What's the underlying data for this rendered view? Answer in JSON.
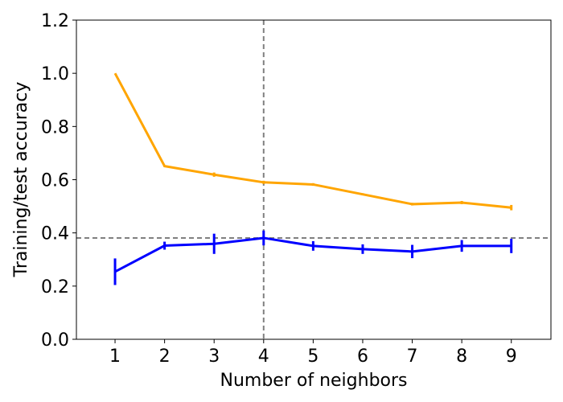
{
  "chart_data": {
    "type": "line",
    "xlabel": "Number of neighbors",
    "ylabel": "Training/test accuracy",
    "x": [
      1,
      2,
      3,
      4,
      5,
      6,
      7,
      8,
      9
    ],
    "xlim": [
      0.22,
      9.8
    ],
    "ylim": [
      0,
      1.2
    ],
    "xticks": [
      "1",
      "2",
      "3",
      "4",
      "5",
      "6",
      "7",
      "8",
      "9"
    ],
    "yticks": [
      "0.0",
      "0.2",
      "0.4",
      "0.6",
      "0.8",
      "1.0",
      "1.2"
    ],
    "grid": false,
    "series": [
      {
        "name": "training",
        "color": "#ffa500",
        "values": [
          1.0,
          0.651,
          0.619,
          0.59,
          0.582,
          0.545,
          0.508,
          0.514,
          0.495
        ],
        "errors": [
          0,
          0.003,
          0.008,
          0.006,
          0.005,
          0.004,
          0.005,
          0.006,
          0.01
        ]
      },
      {
        "name": "test",
        "color": "#0000ff",
        "values": [
          0.254,
          0.352,
          0.359,
          0.381,
          0.351,
          0.339,
          0.33,
          0.351,
          0.351
        ],
        "errors": [
          0.05,
          0.015,
          0.038,
          0.028,
          0.018,
          0.018,
          0.025,
          0.022,
          0.027
        ]
      }
    ],
    "reference_lines": {
      "vertical_x": 4,
      "horizontal_y": 0.381,
      "color": "#808080"
    }
  }
}
